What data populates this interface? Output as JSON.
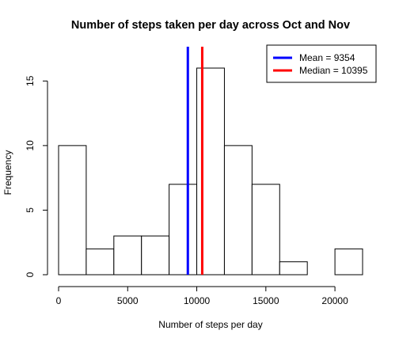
{
  "chart_data": {
    "type": "bar",
    "title": "Number of steps taken per day across Oct and Nov",
    "xlabel": "Number of steps per day",
    "ylabel": "Frequency",
    "bin_edges": [
      0,
      2000,
      4000,
      6000,
      8000,
      10000,
      12000,
      14000,
      16000,
      18000,
      20000,
      22000
    ],
    "values": [
      10,
      2,
      3,
      3,
      7,
      16,
      10,
      7,
      1,
      0,
      2
    ],
    "x_ticks": [
      0,
      5000,
      10000,
      15000,
      20000
    ],
    "x_tick_labels": [
      "0",
      "5000",
      "10000",
      "15000",
      "20000"
    ],
    "y_ticks": [
      0,
      5,
      10,
      15
    ],
    "y_tick_labels": [
      "0",
      "5",
      "10",
      "15"
    ],
    "ylim": [
      0,
      16
    ],
    "grid": false,
    "reference_lines": [
      {
        "name": "Mean",
        "value": 9354,
        "color": "#0000ff"
      },
      {
        "name": "Median",
        "value": 10395,
        "color": "#ff0000"
      }
    ],
    "legend": {
      "position": "top-right",
      "entries": [
        {
          "label": "Mean =  9354",
          "color": "#0000ff"
        },
        {
          "label": "Median =  10395",
          "color": "#ff0000"
        }
      ]
    }
  }
}
